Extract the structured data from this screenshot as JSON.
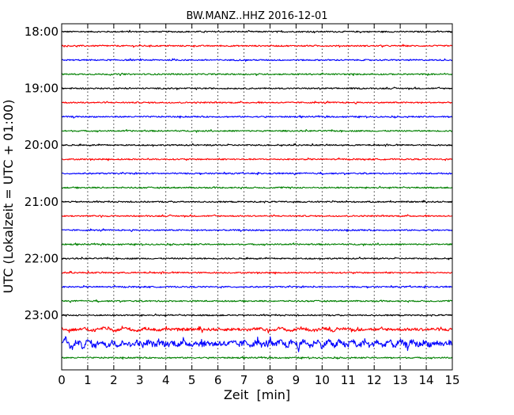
{
  "chart_data": {
    "type": "line",
    "title": "BW.MANZ..HHZ 2016-12-01",
    "xlabel": "Zeit  [min]",
    "ylabel": "UTC (Lokalzeit = UTC + 01:00)",
    "xlim": [
      0,
      15
    ],
    "x_ticks": [
      0,
      1,
      2,
      3,
      4,
      5,
      6,
      7,
      8,
      9,
      10,
      11,
      12,
      13,
      14,
      15
    ],
    "x_grid": "dotted vertical at each minute",
    "row_interval_min": 15,
    "y_tick_labels": [
      "18:00",
      "19:00",
      "20:00",
      "21:00",
      "22:00",
      "23:00"
    ],
    "colors": [
      "#000000",
      "#ff0000",
      "#0000ff",
      "#008000"
    ],
    "traces": [
      {
        "start": "18:00",
        "color": "#000000",
        "amplitude": "low"
      },
      {
        "start": "18:15",
        "color": "#ff0000",
        "amplitude": "low"
      },
      {
        "start": "18:30",
        "color": "#0000ff",
        "amplitude": "low"
      },
      {
        "start": "18:45",
        "color": "#008000",
        "amplitude": "low"
      },
      {
        "start": "19:00",
        "color": "#000000",
        "amplitude": "low"
      },
      {
        "start": "19:15",
        "color": "#ff0000",
        "amplitude": "low"
      },
      {
        "start": "19:30",
        "color": "#0000ff",
        "amplitude": "low"
      },
      {
        "start": "19:45",
        "color": "#008000",
        "amplitude": "low"
      },
      {
        "start": "20:00",
        "color": "#000000",
        "amplitude": "low"
      },
      {
        "start": "20:15",
        "color": "#ff0000",
        "amplitude": "low"
      },
      {
        "start": "20:30",
        "color": "#0000ff",
        "amplitude": "low"
      },
      {
        "start": "20:45",
        "color": "#008000",
        "amplitude": "low"
      },
      {
        "start": "21:00",
        "color": "#000000",
        "amplitude": "low"
      },
      {
        "start": "21:15",
        "color": "#ff0000",
        "amplitude": "low"
      },
      {
        "start": "21:30",
        "color": "#0000ff",
        "amplitude": "low"
      },
      {
        "start": "21:45",
        "color": "#008000",
        "amplitude": "low"
      },
      {
        "start": "22:00",
        "color": "#000000",
        "amplitude": "low"
      },
      {
        "start": "22:15",
        "color": "#ff0000",
        "amplitude": "low"
      },
      {
        "start": "22:30",
        "color": "#0000ff",
        "amplitude": "low"
      },
      {
        "start": "22:45",
        "color": "#008000",
        "amplitude": "low"
      },
      {
        "start": "23:00",
        "color": "#000000",
        "amplitude": "low"
      },
      {
        "start": "23:15",
        "color": "#ff0000",
        "amplitude": "medium"
      },
      {
        "start": "23:30",
        "color": "#0000ff",
        "amplitude": "high"
      },
      {
        "start": "23:45",
        "color": "#008000",
        "amplitude": "low"
      }
    ]
  }
}
